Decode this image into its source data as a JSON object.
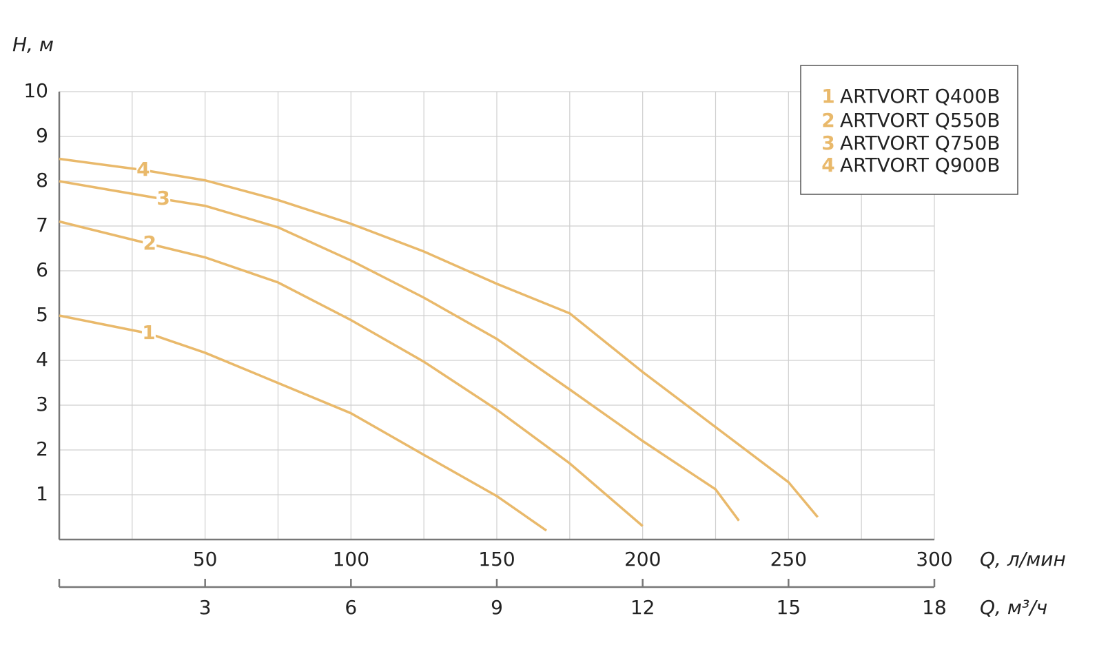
{
  "chart_data": {
    "type": "line",
    "y_label": "H, м",
    "x_label": "Q, л/мин",
    "x2_label": "Q, м³/ч",
    "xlim": [
      0,
      300
    ],
    "xticks": [
      50,
      100,
      150,
      200,
      250,
      300
    ],
    "x_gridlines": [
      25,
      75,
      125,
      175,
      225,
      275
    ],
    "x2lim": [
      0,
      18
    ],
    "x2ticks": [
      3,
      6,
      9,
      12,
      15,
      18
    ],
    "ylim": [
      0,
      10
    ],
    "yticks": [
      1,
      2,
      3,
      4,
      5,
      6,
      7,
      8,
      9,
      10
    ],
    "grid": true,
    "legend": "upper right",
    "series": [
      {
        "name": "ARTVORT Q400B",
        "label": "1",
        "color": "#e9b96b",
        "x": [
          0,
          30.7,
          50,
          100,
          125,
          150,
          167
        ],
        "values": [
          5,
          4.6,
          4.17,
          2.82,
          1.89,
          0.97,
          0.2
        ]
      },
      {
        "name": "ARTVORT Q550B",
        "label": "2",
        "color": "#e9b96b",
        "x": [
          0,
          31,
          50,
          75,
          100,
          125,
          150,
          175,
          200
        ],
        "values": [
          7.1,
          6.6,
          6.3,
          5.74,
          4.9,
          3.97,
          2.9,
          1.7,
          0.3
        ]
      },
      {
        "name": "ARTVORT Q750B",
        "label": "3",
        "color": "#e9b96b",
        "x": [
          0,
          35.7,
          50,
          75,
          100,
          125,
          150,
          175,
          200,
          225,
          233
        ],
        "values": [
          8,
          7.6,
          7.45,
          6.97,
          6.23,
          5.4,
          4.48,
          3.35,
          2.2,
          1.12,
          0.42
        ]
      },
      {
        "name": "ARTVORT Q900B",
        "label": "4",
        "color": "#e9b96b",
        "x": [
          0,
          28.8,
          50,
          75,
          100,
          125,
          150,
          175,
          200,
          225,
          250,
          260
        ],
        "values": [
          8.5,
          8.25,
          8.02,
          7.58,
          7.05,
          6.43,
          5.71,
          5.05,
          3.74,
          2.51,
          1.28,
          0.5
        ]
      }
    ]
  }
}
